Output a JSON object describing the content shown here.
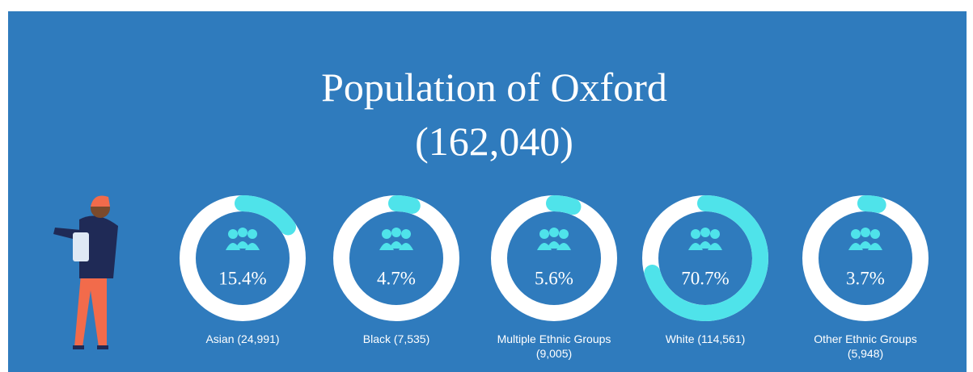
{
  "chart_data": {
    "type": "gauge",
    "title": "Population of Oxford",
    "subtitle": "(162,040)",
    "categories": [
      "Asian (24,991)",
      "Black (7,535)",
      "Multiple Ethnic Groups (9,005)",
      "White (114,561)",
      "Other Ethnic Groups (5,948)"
    ],
    "values": [
      15.4,
      4.7,
      5.6,
      70.7,
      3.7
    ],
    "value_labels": [
      "15.4%",
      "4.7%",
      "5.6%",
      "70.7%",
      "3.7%"
    ],
    "ylim": [
      0,
      100
    ],
    "color": "#4fe3ea"
  }
}
